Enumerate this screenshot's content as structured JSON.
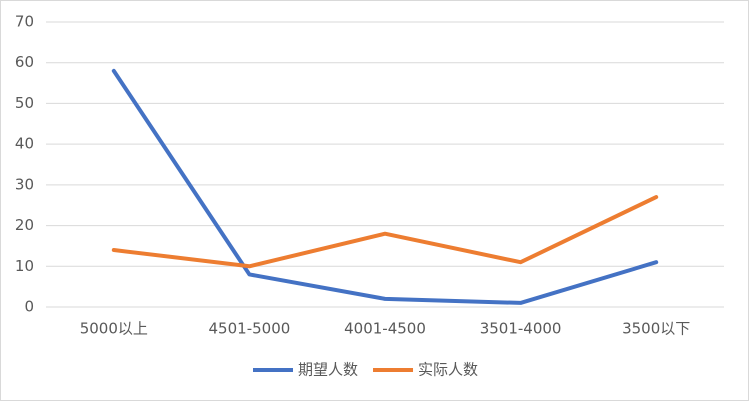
{
  "chart_data": {
    "type": "line",
    "categories": [
      "5000以上",
      "4501-5000",
      "4001-4500",
      "3501-4000",
      "3500以下"
    ],
    "series": [
      {
        "name": "期望人数",
        "color": "#4472c4",
        "values": [
          58,
          8,
          2,
          1,
          11
        ]
      },
      {
        "name": "实际人数",
        "color": "#ed7d31",
        "values": [
          14,
          10,
          18,
          11,
          27
        ]
      }
    ],
    "ylim": [
      0,
      70
    ],
    "yticks": [
      0,
      10,
      20,
      30,
      40,
      50,
      60,
      70
    ],
    "grid": true,
    "legend": "bottom"
  }
}
